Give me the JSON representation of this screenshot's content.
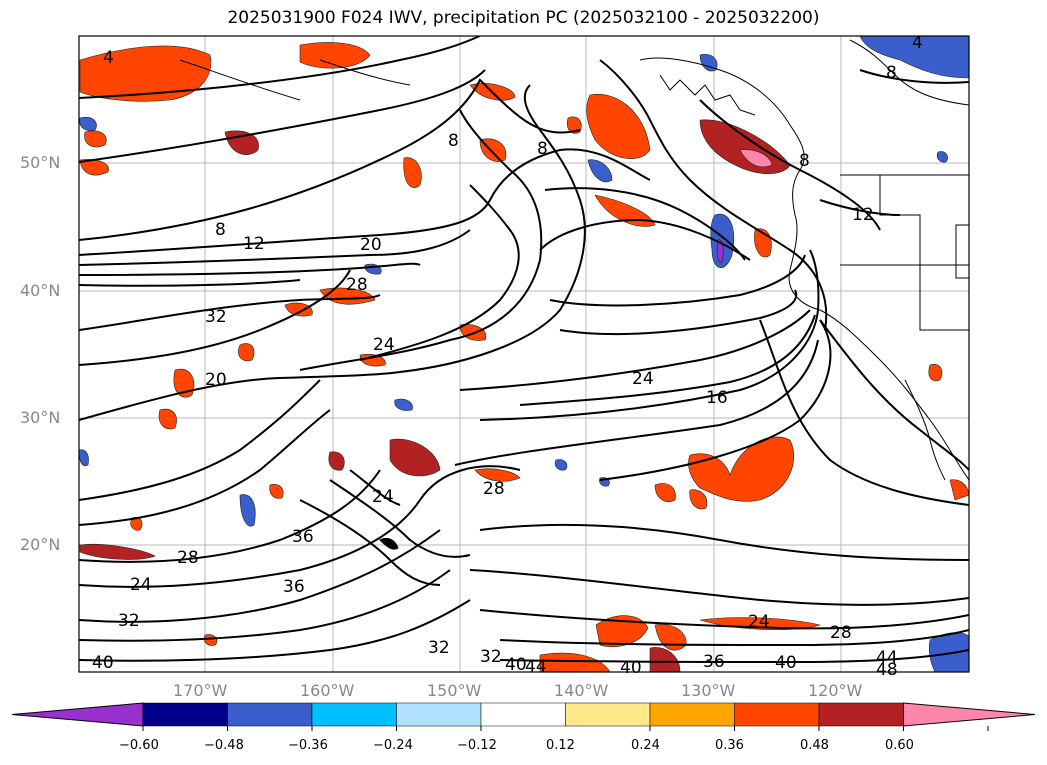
{
  "title": "2025031900 F024 IWV, precipitation PC (2025032100 - 2025032200)",
  "lat_labels": [
    "50°N",
    "40°N",
    "30°N",
    "20°N"
  ],
  "lon_labels": [
    "170°W",
    "160°W",
    "150°W",
    "140°W",
    "130°W",
    "120°W"
  ],
  "contour_labels": [
    "4",
    "8",
    "8",
    "8",
    "8",
    "12",
    "20",
    "28",
    "32",
    "20",
    "24",
    "24",
    "16",
    "28",
    "24",
    "36",
    "28",
    "24",
    "36",
    "32",
    "32",
    "40",
    "32",
    "40",
    "36",
    "40",
    "24",
    "28",
    "44",
    "48",
    "4",
    "8",
    "12",
    "40",
    "44"
  ],
  "colorbar": {
    "ticks": [
      "−0.60",
      "−0.48",
      "−0.36",
      "−0.24",
      "−0.12",
      "0.12",
      "0.24",
      "0.36",
      "0.48",
      "0.60"
    ],
    "colors": [
      "#9b30d0",
      "#00008b",
      "#3a5fcd",
      "#00bfff",
      "#b0e2ff",
      "#ffffff",
      "#ffe88a",
      "#ffa500",
      "#ff4500",
      "#b22222",
      "#ff85aa"
    ]
  },
  "precip_colors": {
    "pos1": "#ffe88a",
    "pos2": "#ffa500",
    "pos3": "#ff4500",
    "pos4": "#b22222",
    "pos5": "#ff85aa",
    "neg1": "#b0e2ff",
    "neg2": "#00bfff",
    "neg3": "#3a5fcd",
    "neg4": "#00008b",
    "neg5": "#9b30d0"
  }
}
